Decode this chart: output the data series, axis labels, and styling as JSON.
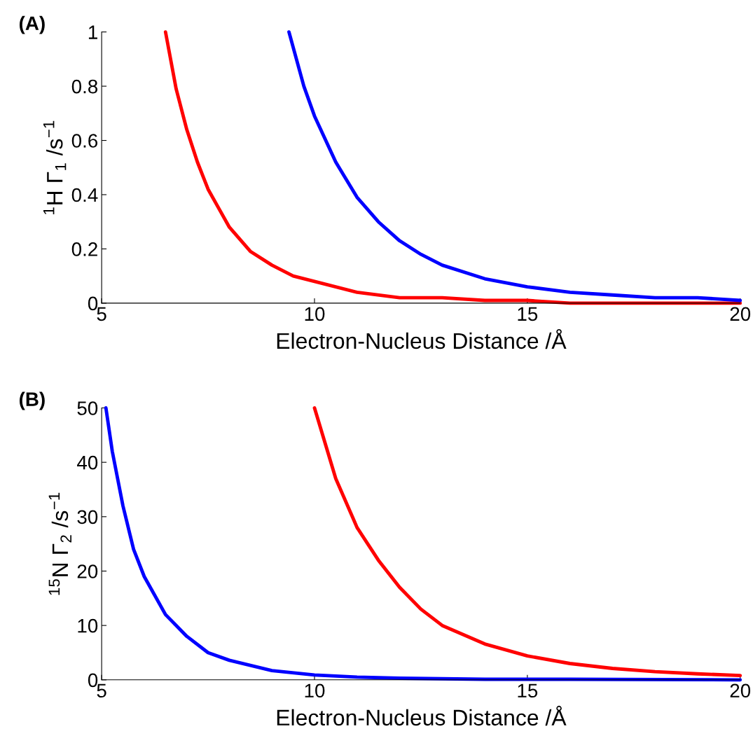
{
  "chart_data": [
    {
      "type": "line",
      "title": "(A)",
      "xlabel": "Electron-Nucleus Distance /Å",
      "ylabel": "$^{1}$H Γ$_{1}$ /s$^{−1}$",
      "xlim": [
        5,
        20
      ],
      "xticks": [
        5,
        10,
        15,
        20
      ],
      "ylim": [
        0,
        1
      ],
      "yticks": [
        0,
        0.2,
        0.4,
        0.6,
        0.8,
        1
      ],
      "series": [
        {
          "color": "#ff0000",
          "x": [
            6.5,
            6.75,
            7,
            7.25,
            7.5,
            7.75,
            8,
            8.5,
            9,
            9.5,
            10,
            11,
            12,
            13,
            14,
            15,
            16,
            17,
            18,
            20
          ],
          "values": [
            1.0,
            0.79,
            0.64,
            0.52,
            0.42,
            0.35,
            0.28,
            0.19,
            0.14,
            0.1,
            0.08,
            0.04,
            0.02,
            0.02,
            0.01,
            0.01,
            0,
            0,
            0,
            0
          ]
        },
        {
          "color": "#0000ff",
          "x": [
            9.4,
            9.75,
            10,
            10.5,
            11,
            11.5,
            12,
            12.5,
            13,
            14,
            15,
            16,
            17,
            18,
            19,
            20
          ],
          "values": [
            1.0,
            0.8,
            0.69,
            0.52,
            0.39,
            0.3,
            0.23,
            0.18,
            0.14,
            0.09,
            0.06,
            0.04,
            0.03,
            0.02,
            0.02,
            0.01
          ]
        }
      ]
    },
    {
      "type": "line",
      "title": "(B)",
      "xlabel": "Electron-Nucleus Distance /Å",
      "ylabel": "$^{15}$N Γ$_{2}$ /s$^{−1}$",
      "xlim": [
        5,
        20
      ],
      "xticks": [
        5,
        10,
        15,
        20
      ],
      "ylim": [
        0,
        50
      ],
      "yticks": [
        0,
        10,
        20,
        30,
        40,
        50
      ],
      "series": [
        {
          "color": "#0000ff",
          "x": [
            5.1,
            5.25,
            5.5,
            5.75,
            6,
            6.5,
            7,
            7.5,
            8,
            9,
            10,
            11,
            12,
            14,
            16,
            20
          ],
          "values": [
            50,
            42,
            32,
            24,
            19,
            12,
            8,
            5,
            3.6,
            1.7,
            0.9,
            0.5,
            0.3,
            0.1,
            0.1,
            0
          ]
        },
        {
          "color": "#ff0000",
          "x": [
            10,
            10.5,
            11,
            11.5,
            12,
            12.5,
            13,
            14,
            15,
            16,
            17,
            18,
            19,
            20
          ],
          "values": [
            50,
            37,
            28,
            22,
            17,
            13,
            10,
            6.6,
            4.4,
            3.0,
            2.1,
            1.5,
            1.1,
            0.8
          ]
        }
      ]
    }
  ]
}
